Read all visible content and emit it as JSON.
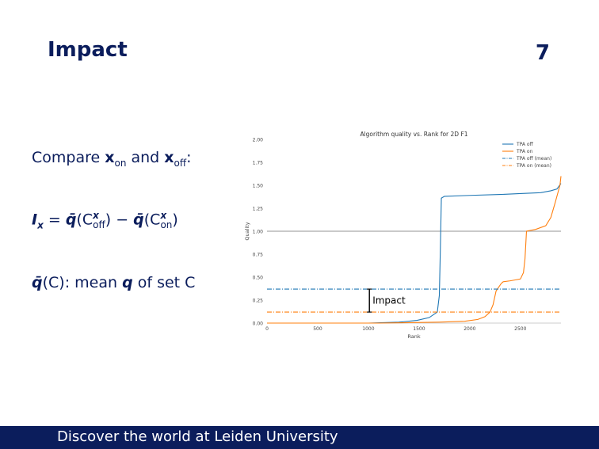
{
  "slide": {
    "title": "Impact",
    "number": "7",
    "footer": "Discover the world at Leiden University",
    "bullets": {
      "compare_prefix": "Compare ",
      "x_on_base": "x",
      "x_on_sub": "on",
      "and_text": " and ",
      "x_off_base": "x",
      "x_off_sub": "off",
      "colon": ":",
      "formula_lhs": "I",
      "formula_lhs_sub": "x",
      "formula_eq": " = ",
      "qbar": "q̄",
      "formula_term1_C": "(C",
      "formula_term1_sup": "x",
      "formula_term1_sub": "off",
      "formula_close1": ")",
      "formula_minus": " − ",
      "formula_term2_C": "(C",
      "formula_term2_sup": "x",
      "formula_term2_sub": "on",
      "formula_close2": ")",
      "def_qbar": "q̄",
      "def_C": "(C)",
      "def_text1": ": mean ",
      "def_q": "q",
      "def_text2": " of set C"
    }
  },
  "chart_data": {
    "type": "line",
    "title": "Algorithm quality vs. Rank for 2D F1",
    "xlabel": "Rank",
    "ylabel": "Quality",
    "xlim": [
      0,
      2900
    ],
    "ylim": [
      0,
      2.0
    ],
    "xticks": [
      "0",
      "500",
      "1000",
      "1500",
      "2000",
      "2500"
    ],
    "yticks": [
      "0.00",
      "0.25",
      "0.50",
      "0.75",
      "1.00",
      "1.25",
      "1.50",
      "1.75",
      "2.00"
    ],
    "reference_line_y": 1.0,
    "annotation": "Impact",
    "legend_position": "top-right",
    "series": [
      {
        "name": "TPA off",
        "color": "#1f77b4",
        "style": "solid",
        "x": [
          0,
          1000,
          1300,
          1480,
          1600,
          1680,
          1700,
          1710,
          1720,
          1750,
          2000,
          2300,
          2500,
          2700,
          2800,
          2860,
          2900
        ],
        "y": [
          0,
          0,
          0.01,
          0.03,
          0.06,
          0.12,
          0.3,
          0.8,
          1.36,
          1.38,
          1.39,
          1.4,
          1.41,
          1.42,
          1.44,
          1.46,
          1.52
        ]
      },
      {
        "name": "TPA on",
        "color": "#ff7f0e",
        "style": "solid",
        "x": [
          0,
          1100,
          1700,
          1950,
          2080,
          2150,
          2200,
          2230,
          2260,
          2310,
          2320,
          2330,
          2400,
          2500,
          2530,
          2545,
          2560,
          2650,
          2750,
          2800,
          2840,
          2870,
          2890,
          2900
        ],
        "y": [
          0,
          0,
          0.01,
          0.02,
          0.04,
          0.07,
          0.12,
          0.2,
          0.35,
          0.43,
          0.44,
          0.45,
          0.46,
          0.48,
          0.55,
          0.7,
          1.0,
          1.02,
          1.06,
          1.15,
          1.3,
          1.42,
          1.5,
          1.6
        ]
      },
      {
        "name": "TPA off (mean)",
        "color": "#1f77b4",
        "style": "dashdot",
        "x": [
          0,
          2900
        ],
        "y": [
          0.37,
          0.37
        ]
      },
      {
        "name": "TPA on (mean)",
        "color": "#ff7f0e",
        "style": "dashdot",
        "x": [
          0,
          2900
        ],
        "y": [
          0.12,
          0.12
        ]
      }
    ]
  }
}
